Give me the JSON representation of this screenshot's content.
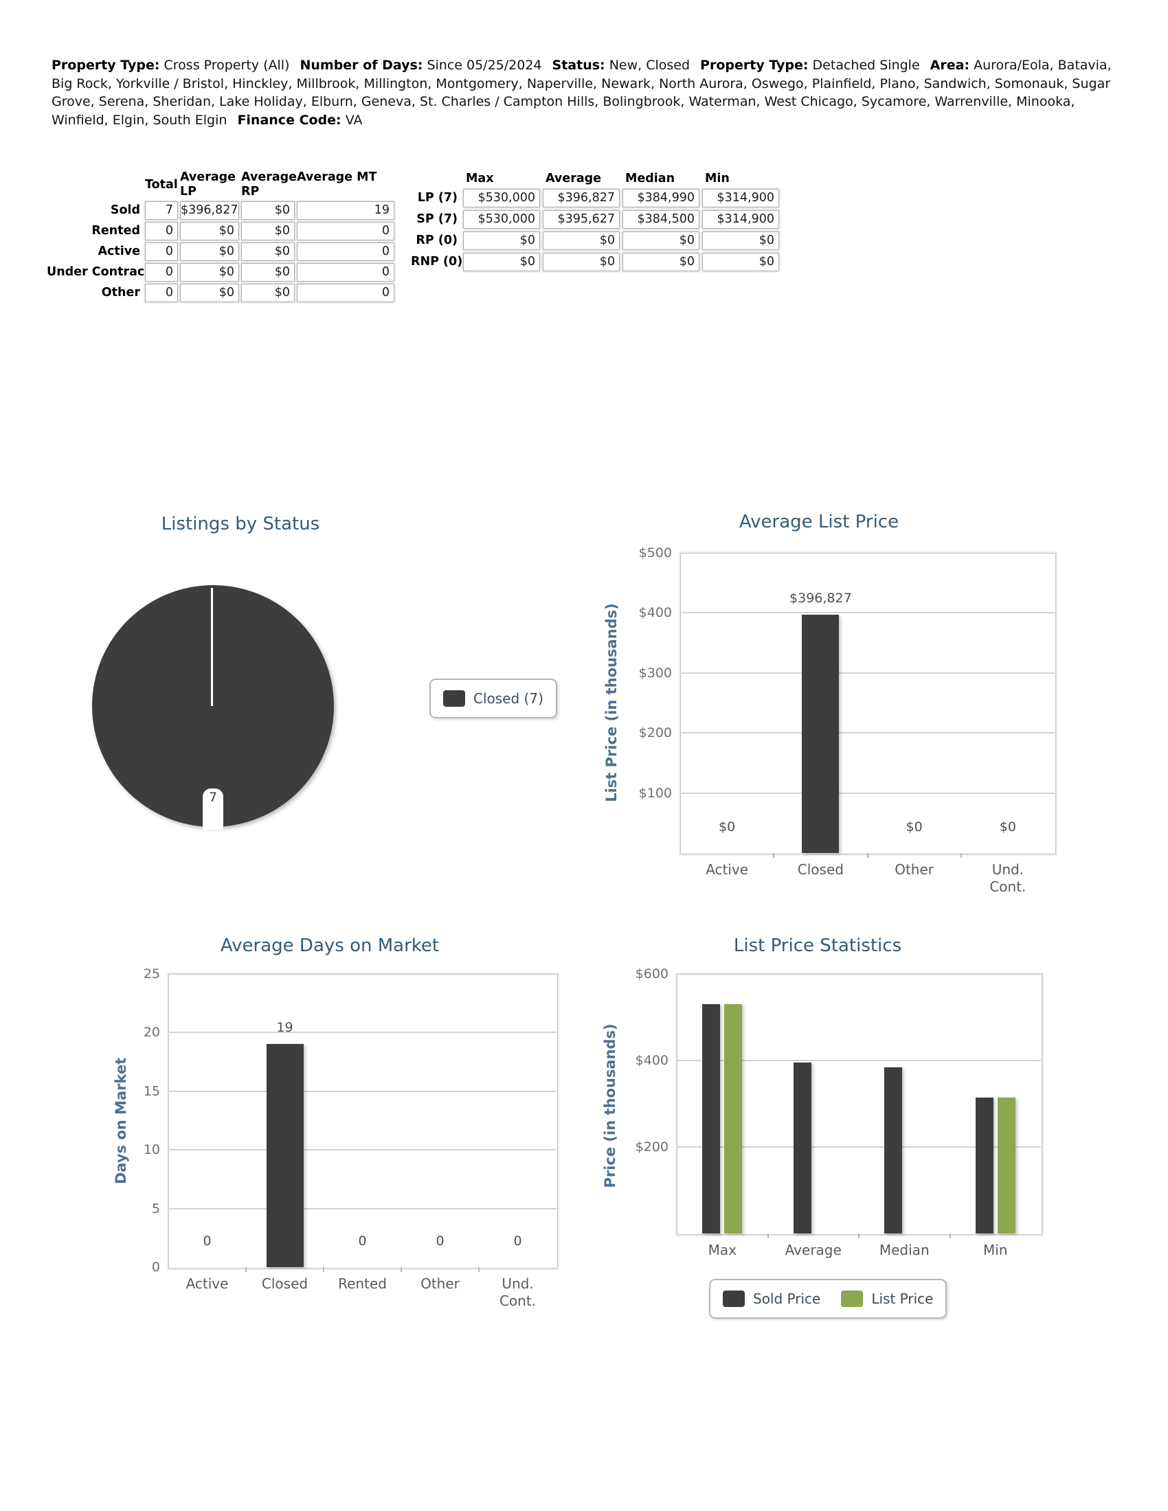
{
  "header": {
    "segments": [
      {
        "label": "Property Type:",
        "value": "Cross Property (All)"
      },
      {
        "label": "Number of Days:",
        "value": "Since 05/25/2024"
      },
      {
        "label": "Status:",
        "value": "New, Closed"
      },
      {
        "label": "Property Type:",
        "value": "Detached Single"
      },
      {
        "label": "Area:",
        "value": "Aurora/Eola, Batavia, Big Rock, Yorkville / Bristol, Hinckley, Millbrook, Millington, Montgomery, Naperville, Newark, North Aurora, Oswego, Plainfield, Plano, Sandwich, Somonauk, Sugar Grove, Serena, Sheridan, Lake Holiday, Elburn, Geneva, St. Charles / Campton Hills, Bolingbrook, Waterman, West Chicago, Sycamore, Warrenville, Minooka, Winfield, Elgin, South Elgin"
      },
      {
        "label": "Finance Code:",
        "value": "VA"
      }
    ]
  },
  "summary_table": {
    "columns": [
      "Total",
      "Average LP",
      "Average RP",
      "Average MT"
    ],
    "rows": [
      {
        "label": "Sold",
        "values": [
          "7",
          "$396,827",
          "$0",
          "19"
        ]
      },
      {
        "label": "Rented",
        "values": [
          "0",
          "$0",
          "$0",
          "0"
        ]
      },
      {
        "label": "Active",
        "values": [
          "0",
          "$0",
          "$0",
          "0"
        ]
      },
      {
        "label": "Under Contract",
        "values": [
          "0",
          "$0",
          "$0",
          "0"
        ]
      },
      {
        "label": "Other",
        "values": [
          "0",
          "$0",
          "$0",
          "0"
        ]
      }
    ]
  },
  "stats_table": {
    "columns": [
      "Max",
      "Average",
      "Median",
      "Min"
    ],
    "rows": [
      {
        "label": "LP (7)",
        "values": [
          "$530,000",
          "$396,827",
          "$384,990",
          "$314,900"
        ]
      },
      {
        "label": "SP (7)",
        "values": [
          "$530,000",
          "$395,627",
          "$384,500",
          "$314,900"
        ]
      },
      {
        "label": "RP (0)",
        "values": [
          "$0",
          "$0",
          "$0",
          "$0"
        ]
      },
      {
        "label": "RNP (0)",
        "values": [
          "$0",
          "$0",
          "$0",
          "$0"
        ]
      }
    ]
  },
  "chart_data": [
    {
      "type": "pie",
      "title": "Listings by Status",
      "slices": [
        {
          "label": "Closed",
          "value": 7,
          "data_label": "7",
          "color": "#3d3d3d"
        }
      ],
      "legend": [
        {
          "label": "Closed (7)",
          "color": "#3d3d3d"
        }
      ],
      "legend_position": "right"
    },
    {
      "type": "bar",
      "title": "Average List Price",
      "ylabel": "List Price (in thousands)",
      "categories": [
        "Active",
        "Closed",
        "Other",
        "Und. Cont."
      ],
      "values": [
        0,
        396.827,
        0,
        0
      ],
      "value_labels": [
        "$0",
        "$396,827",
        "$0",
        "$0"
      ],
      "ylim": [
        0,
        500
      ],
      "yticks": [
        {
          "label": "$500",
          "value": 500
        },
        {
          "label": "$400",
          "value": 400
        },
        {
          "label": "$300",
          "value": 300
        },
        {
          "label": "$200",
          "value": 200
        },
        {
          "label": "$100",
          "value": 100
        }
      ],
      "bar_color": "#3d3d3d",
      "grid": true
    },
    {
      "type": "bar",
      "title": "Average Days on Market",
      "ylabel": "Days on Market",
      "categories": [
        "Active",
        "Closed",
        "Rented",
        "Other",
        "Und. Cont."
      ],
      "values": [
        0,
        19,
        0,
        0,
        0
      ],
      "value_labels": [
        "0",
        "19",
        "0",
        "0",
        "0"
      ],
      "ylim": [
        0,
        25
      ],
      "yticks": [
        {
          "label": "25",
          "value": 25
        },
        {
          "label": "20",
          "value": 20
        },
        {
          "label": "15",
          "value": 15
        },
        {
          "label": "10",
          "value": 10
        },
        {
          "label": "5",
          "value": 5
        },
        {
          "label": "0",
          "value": 0
        }
      ],
      "bar_color": "#3d3d3d",
      "grid": true
    },
    {
      "type": "bar",
      "title": "List Price Statistics",
      "ylabel": "Price (in thousands)",
      "categories": [
        "Max",
        "Average",
        "Median",
        "Min"
      ],
      "series": [
        {
          "name": "Sold Price",
          "color": "#3d3d3d",
          "values": [
            530,
            395.627,
            384.5,
            314.9
          ]
        },
        {
          "name": "List Price",
          "color": "#8ca74d",
          "values": [
            530,
            null,
            null,
            314.9
          ]
        }
      ],
      "ylim": [
        0,
        600
      ],
      "yticks": [
        {
          "label": "$600",
          "value": 600
        },
        {
          "label": "$400",
          "value": 400
        },
        {
          "label": "$200",
          "value": 200
        }
      ],
      "legend_position": "bottom",
      "grid": true
    }
  ],
  "colors": {
    "bar_dark": "#3d3d3d",
    "bar_green": "#8ca74d",
    "chart_title": "#375a73",
    "axis_title": "#4d7191"
  }
}
